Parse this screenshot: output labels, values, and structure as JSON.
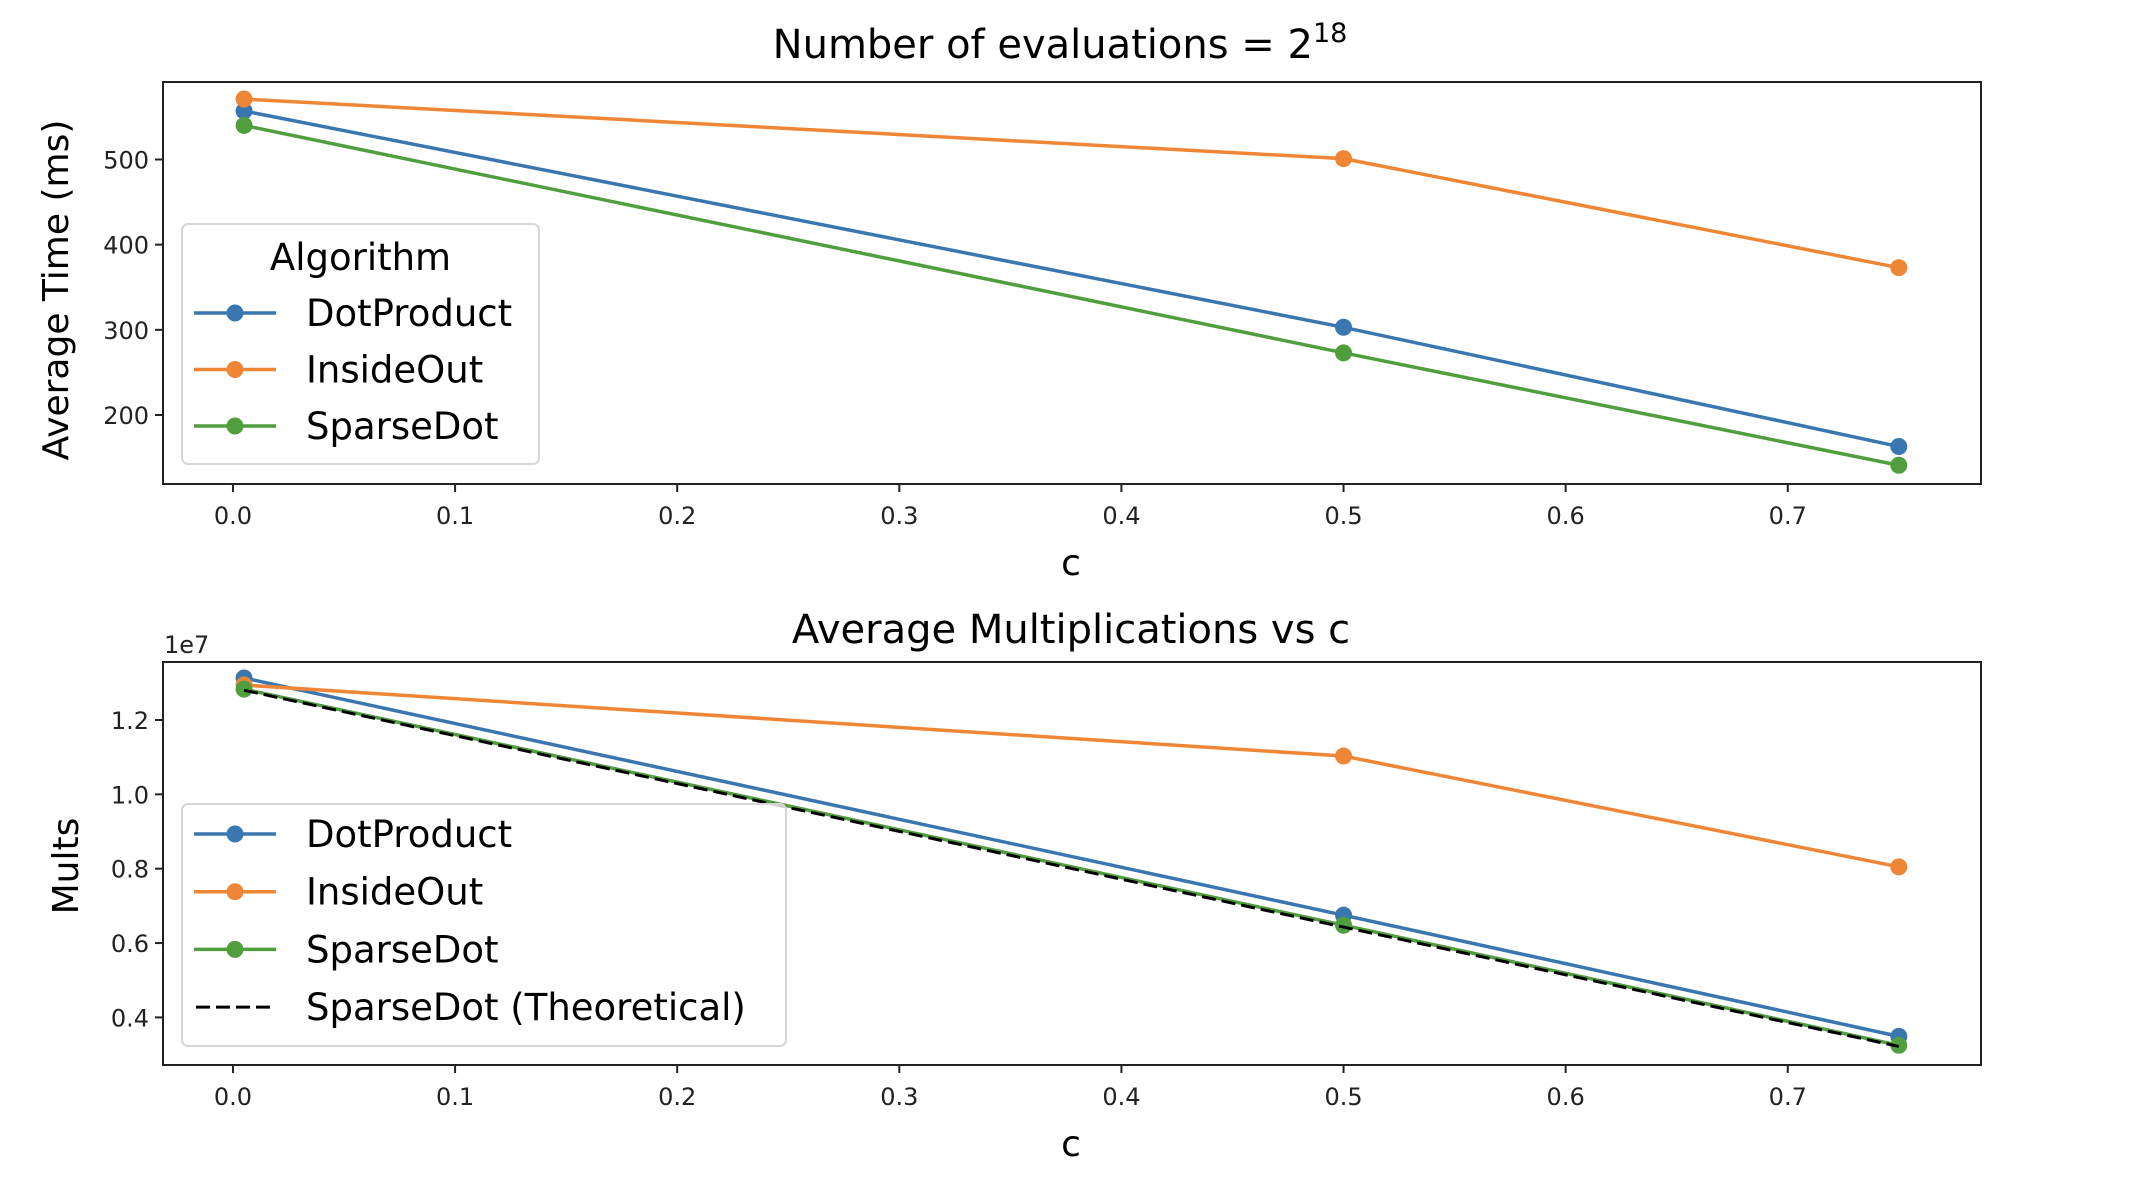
{
  "chart_data": [
    {
      "type": "line",
      "title": "Number of evaluations = 2",
      "title_superscript": "18",
      "xlabel": "c",
      "ylabel": "Average Time (ms)",
      "xlim": [
        -0.0315,
        0.787
      ],
      "ylim": [
        119,
        591
      ],
      "xticks": [
        0.0,
        0.1,
        0.2,
        0.3,
        0.4,
        0.5,
        0.6,
        0.7
      ],
      "xtick_labels": [
        "0.0",
        "0.1",
        "0.2",
        "0.3",
        "0.4",
        "0.5",
        "0.6",
        "0.7"
      ],
      "yticks": [
        200,
        300,
        400,
        500
      ],
      "ytick_labels": [
        "200",
        "300",
        "400",
        "500"
      ],
      "grid": false,
      "x": [
        0.005,
        0.5,
        0.75
      ],
      "legend": {
        "title": "Algorithm",
        "placement": "lower-left"
      },
      "series": [
        {
          "name": "DotProduct",
          "color": "#3a76af",
          "style": "solid-marker",
          "values": [
            557,
            303,
            163
          ]
        },
        {
          "name": "InsideOut",
          "color": "#ef8636",
          "style": "solid-marker",
          "values": [
            571,
            501,
            373
          ]
        },
        {
          "name": "SparseDot",
          "color": "#519e3e",
          "style": "solid-marker",
          "values": [
            540,
            273,
            141
          ]
        }
      ]
    },
    {
      "type": "line",
      "title": "Average Multiplications vs c",
      "xlabel": "c",
      "ylabel": "Mults",
      "y_offset_label": "1e7",
      "xlim": [
        -0.0315,
        0.787
      ],
      "ylim": [
        0.272,
        1.356
      ],
      "xticks": [
        0.0,
        0.1,
        0.2,
        0.3,
        0.4,
        0.5,
        0.6,
        0.7
      ],
      "xtick_labels": [
        "0.0",
        "0.1",
        "0.2",
        "0.3",
        "0.4",
        "0.5",
        "0.6",
        "0.7"
      ],
      "yticks": [
        0.4,
        0.6,
        0.8,
        1.0,
        1.2
      ],
      "ytick_labels": [
        "0.4",
        "0.6",
        "0.8",
        "1.0",
        "1.2"
      ],
      "grid": false,
      "x": [
        0.005,
        0.5,
        0.75
      ],
      "legend": {
        "title": "",
        "placement": "lower-left"
      },
      "series": [
        {
          "name": "DotProduct",
          "color": "#3a76af",
          "style": "solid-marker",
          "values": [
            1.313,
            0.675,
            0.349
          ]
        },
        {
          "name": "InsideOut",
          "color": "#ef8636",
          "style": "solid-marker",
          "values": [
            1.294,
            1.103,
            0.805
          ]
        },
        {
          "name": "SparseDot",
          "color": "#519e3e",
          "style": "solid-marker",
          "values": [
            1.283,
            0.648,
            0.325
          ]
        },
        {
          "name": "SparseDot (Theoretical)",
          "color": "#000000",
          "style": "dashed",
          "values": [
            1.28,
            0.643,
            0.322
          ]
        }
      ]
    }
  ]
}
